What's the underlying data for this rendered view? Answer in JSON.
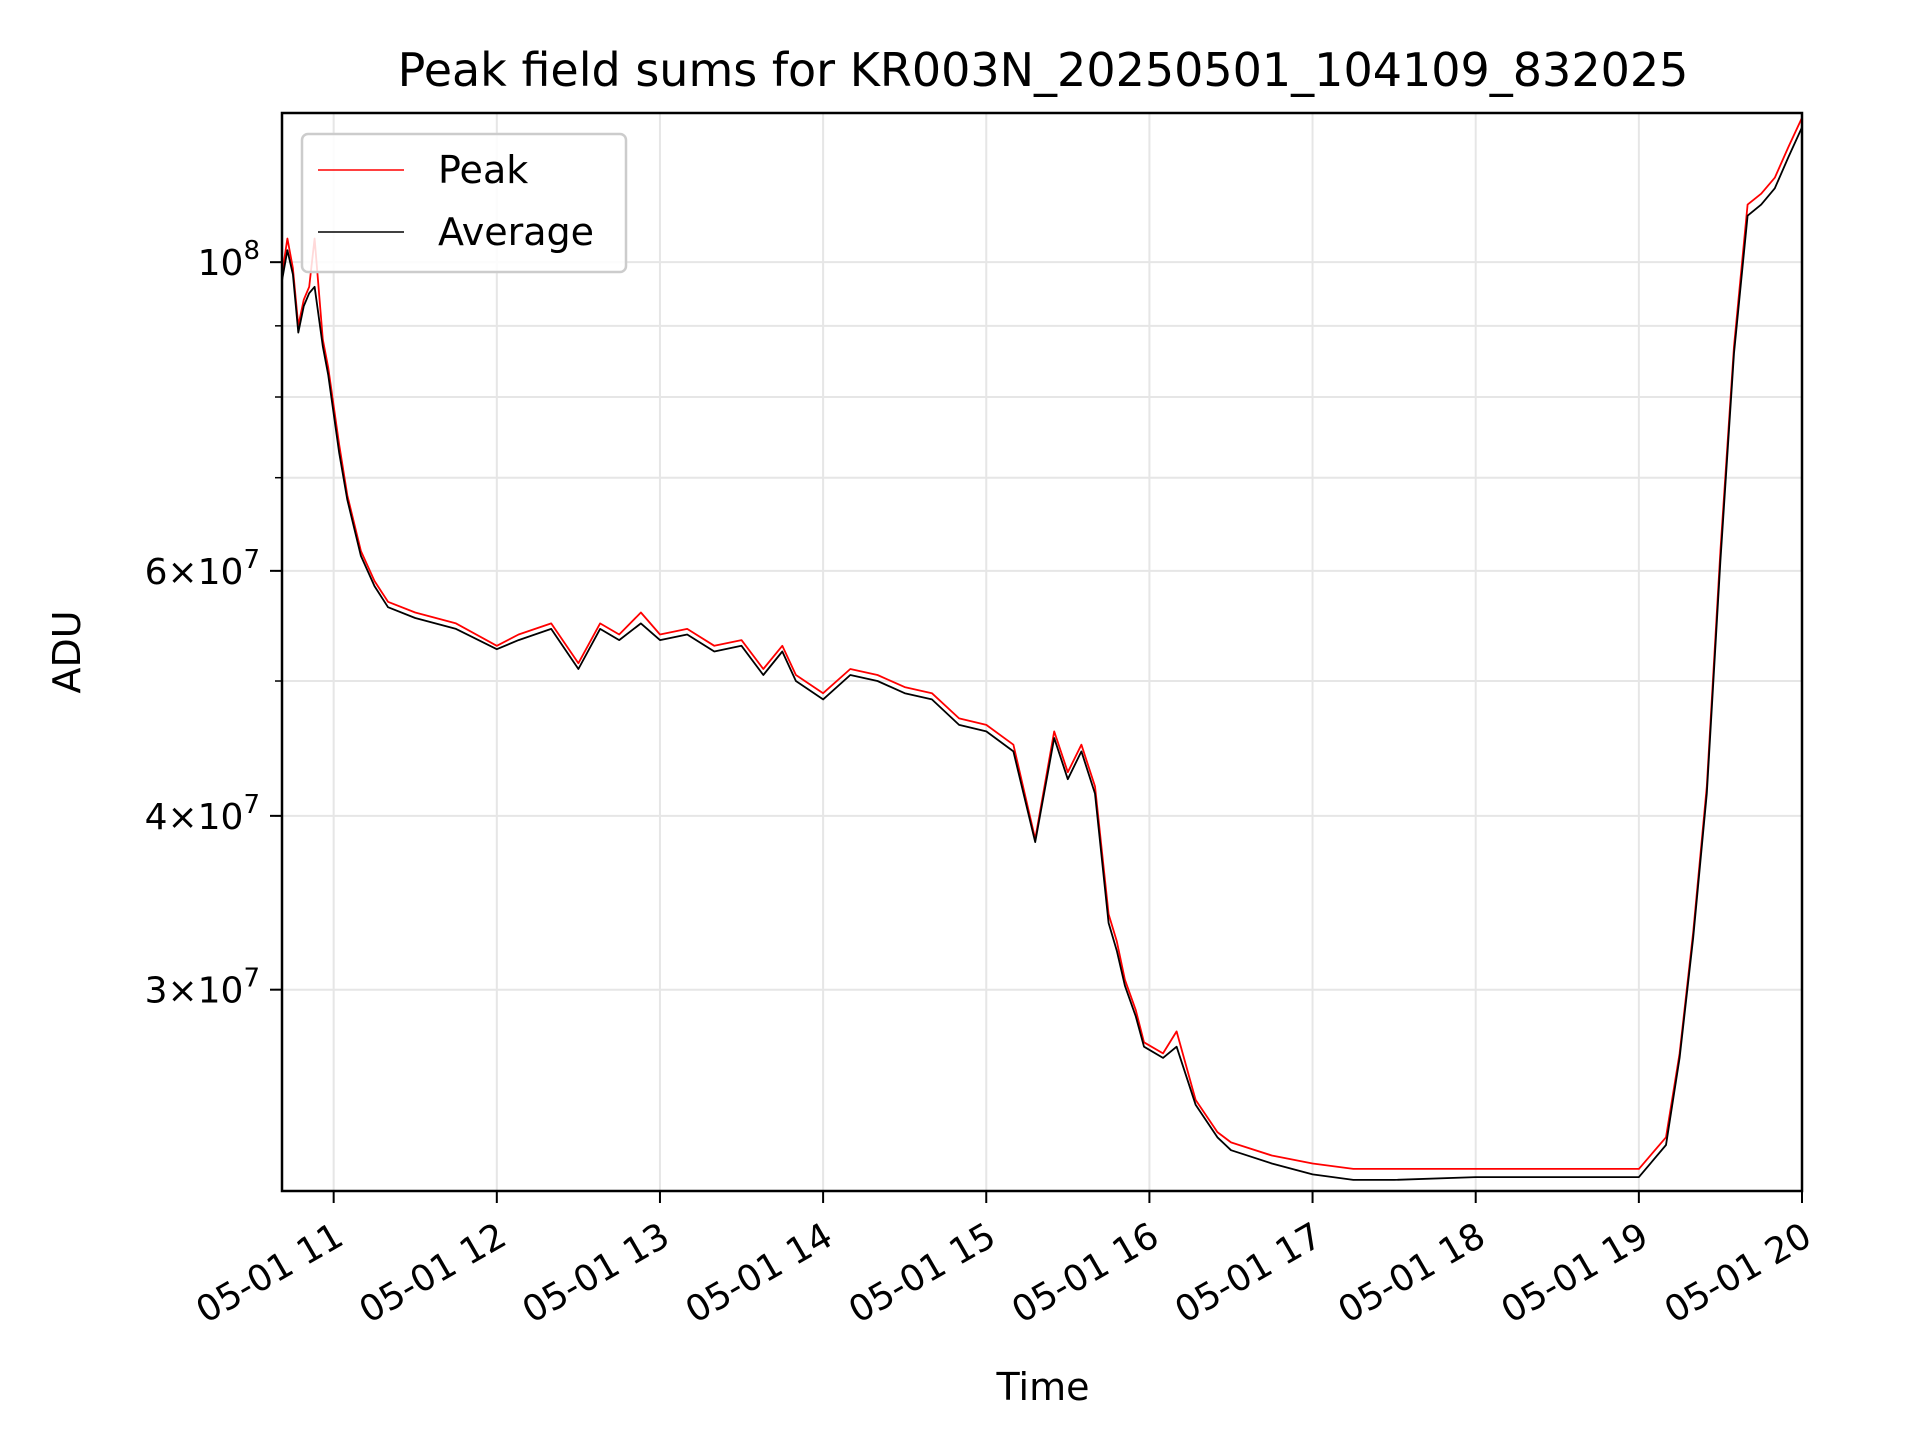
{
  "chart_data": {
    "type": "line",
    "title": "Peak field sums for KR003N_20250501_104109_832025",
    "xlabel": "Time",
    "ylabel": "ADU",
    "yscale": "log",
    "xlim": [
      "2025-05-01 10:41",
      "2025-05-01 20:00"
    ],
    "ylim": [
      21500000,
      128000000
    ],
    "grid": true,
    "legend_position": "upper left",
    "x_tick_labels": [
      "05-01 11",
      "05-01 12",
      "05-01 13",
      "05-01 14",
      "05-01 15",
      "05-01 16",
      "05-01 17",
      "05-01 18",
      "05-01 19",
      "05-01 20"
    ],
    "y_tick_labels": [
      {
        "value": 100000000,
        "mantissa": "",
        "exponent": "8"
      },
      {
        "value": 60000000,
        "mantissa": "6",
        "exponent": "7"
      },
      {
        "value": 40000000,
        "mantissa": "4",
        "exponent": "7"
      },
      {
        "value": 30000000,
        "mantissa": "3",
        "exponent": "7"
      }
    ],
    "series": [
      {
        "name": "Peak",
        "color": "#ff0000",
        "x": [
          "2025-05-01 10:41",
          "2025-05-01 10:43",
          "2025-05-01 10:45",
          "2025-05-01 10:47",
          "2025-05-01 10:49",
          "2025-05-01 10:51",
          "2025-05-01 10:53",
          "2025-05-01 10:56",
          "2025-05-01 10:58",
          "2025-05-01 11:02",
          "2025-05-01 11:05",
          "2025-05-01 11:10",
          "2025-05-01 11:15",
          "2025-05-01 11:20",
          "2025-05-01 11:30",
          "2025-05-01 11:45",
          "2025-05-01 12:00",
          "2025-05-01 12:08",
          "2025-05-01 12:20",
          "2025-05-01 12:30",
          "2025-05-01 12:38",
          "2025-05-01 12:45",
          "2025-05-01 12:53",
          "2025-05-01 13:00",
          "2025-05-01 13:10",
          "2025-05-01 13:20",
          "2025-05-01 13:30",
          "2025-05-01 13:38",
          "2025-05-01 13:45",
          "2025-05-01 13:50",
          "2025-05-01 14:00",
          "2025-05-01 14:10",
          "2025-05-01 14:20",
          "2025-05-01 14:30",
          "2025-05-01 14:40",
          "2025-05-01 14:50",
          "2025-05-01 15:00",
          "2025-05-01 15:10",
          "2025-05-01 15:18",
          "2025-05-01 15:25",
          "2025-05-01 15:30",
          "2025-05-01 15:35",
          "2025-05-01 15:40",
          "2025-05-01 15:45",
          "2025-05-01 15:48",
          "2025-05-01 15:51",
          "2025-05-01 15:55",
          "2025-05-01 15:58",
          "2025-05-01 16:05",
          "2025-05-01 16:10",
          "2025-05-01 16:17",
          "2025-05-01 16:25",
          "2025-05-01 16:30",
          "2025-05-01 16:45",
          "2025-05-01 17:00",
          "2025-05-01 17:15",
          "2025-05-01 17:30",
          "2025-05-01 18:00",
          "2025-05-01 18:30",
          "2025-05-01 19:00",
          "2025-05-01 19:10",
          "2025-05-01 19:15",
          "2025-05-01 19:20",
          "2025-05-01 19:25",
          "2025-05-01 19:30",
          "2025-05-01 19:35",
          "2025-05-01 19:40",
          "2025-05-01 19:45",
          "2025-05-01 19:50",
          "2025-05-01 19:55",
          "2025-05-01 20:00"
        ],
        "y": [
          98000000,
          104000000,
          99000000,
          90000000,
          94000000,
          96000000,
          104000000,
          88000000,
          84000000,
          74000000,
          68000000,
          62000000,
          59000000,
          57000000,
          56000000,
          55000000,
          53000000,
          54000000,
          55000000,
          51500000,
          55000000,
          54000000,
          56000000,
          54000000,
          54500000,
          53000000,
          53500000,
          51000000,
          53000000,
          50500000,
          49000000,
          51000000,
          50500000,
          49500000,
          49000000,
          47000000,
          46500000,
          45000000,
          38500000,
          46000000,
          43000000,
          45000000,
          42000000,
          34000000,
          32500000,
          30500000,
          29000000,
          27500000,
          27000000,
          28000000,
          25000000,
          23700000,
          23300000,
          22800000,
          22500000,
          22300000,
          22300000,
          22300000,
          22300000,
          22300000,
          23500000,
          27000000,
          33000000,
          42000000,
          62000000,
          87000000,
          110000000,
          112000000,
          115000000,
          121000000,
          127000000
        ]
      },
      {
        "name": "Average",
        "color": "#000000",
        "x": [
          "2025-05-01 10:41",
          "2025-05-01 10:43",
          "2025-05-01 10:45",
          "2025-05-01 10:47",
          "2025-05-01 10:49",
          "2025-05-01 10:51",
          "2025-05-01 10:53",
          "2025-05-01 10:56",
          "2025-05-01 10:58",
          "2025-05-01 11:02",
          "2025-05-01 11:05",
          "2025-05-01 11:10",
          "2025-05-01 11:15",
          "2025-05-01 11:20",
          "2025-05-01 11:30",
          "2025-05-01 11:45",
          "2025-05-01 12:00",
          "2025-05-01 12:08",
          "2025-05-01 12:20",
          "2025-05-01 12:30",
          "2025-05-01 12:38",
          "2025-05-01 12:45",
          "2025-05-01 12:53",
          "2025-05-01 13:00",
          "2025-05-01 13:10",
          "2025-05-01 13:20",
          "2025-05-01 13:30",
          "2025-05-01 13:38",
          "2025-05-01 13:45",
          "2025-05-01 13:50",
          "2025-05-01 14:00",
          "2025-05-01 14:10",
          "2025-05-01 14:20",
          "2025-05-01 14:30",
          "2025-05-01 14:40",
          "2025-05-01 14:50",
          "2025-05-01 15:00",
          "2025-05-01 15:10",
          "2025-05-01 15:18",
          "2025-05-01 15:25",
          "2025-05-01 15:30",
          "2025-05-01 15:35",
          "2025-05-01 15:40",
          "2025-05-01 15:45",
          "2025-05-01 15:48",
          "2025-05-01 15:51",
          "2025-05-01 15:55",
          "2025-05-01 15:58",
          "2025-05-01 16:05",
          "2025-05-01 16:10",
          "2025-05-01 16:17",
          "2025-05-01 16:25",
          "2025-05-01 16:30",
          "2025-05-01 16:45",
          "2025-05-01 17:00",
          "2025-05-01 17:15",
          "2025-05-01 17:30",
          "2025-05-01 18:00",
          "2025-05-01 18:30",
          "2025-05-01 19:00",
          "2025-05-01 19:10",
          "2025-05-01 19:15",
          "2025-05-01 19:20",
          "2025-05-01 19:25",
          "2025-05-01 19:30",
          "2025-05-01 19:35",
          "2025-05-01 19:40",
          "2025-05-01 19:45",
          "2025-05-01 19:50",
          "2025-05-01 19:55",
          "2025-05-01 20:00"
        ],
        "y": [
          97000000,
          102000000,
          98000000,
          89000000,
          93000000,
          95000000,
          96000000,
          87000000,
          83000000,
          73000000,
          67500000,
          61500000,
          58500000,
          56500000,
          55500000,
          54500000,
          52700000,
          53500000,
          54500000,
          51000000,
          54500000,
          53500000,
          55000000,
          53500000,
          54000000,
          52500000,
          53000000,
          50500000,
          52500000,
          50000000,
          48500000,
          50500000,
          50000000,
          49000000,
          48500000,
          46500000,
          46000000,
          44500000,
          38300000,
          45500000,
          42500000,
          44500000,
          41500000,
          33500000,
          32000000,
          30200000,
          28700000,
          27300000,
          26800000,
          27300000,
          24800000,
          23500000,
          23000000,
          22500000,
          22100000,
          21900000,
          21900000,
          22000000,
          22000000,
          22000000,
          23200000,
          26800000,
          32700000,
          41500000,
          61000000,
          86000000,
          108000000,
          110000000,
          113000000,
          119000000,
          125000000
        ]
      }
    ]
  }
}
